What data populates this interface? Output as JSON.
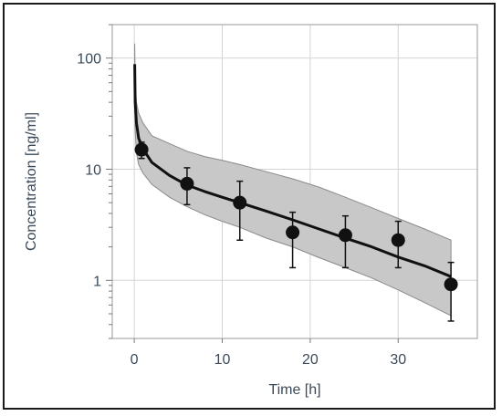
{
  "chart_data": {
    "type": "scatter",
    "xlabel": "Time [h]",
    "ylabel": "Concentration [ng/ml]",
    "xlim": [
      -2.5,
      39
    ],
    "ylim": [
      0.3,
      200
    ],
    "y_scale": "log",
    "grid": true,
    "x_ticks": [
      {
        "value": 0,
        "label": "0"
      },
      {
        "value": 10,
        "label": "10"
      },
      {
        "value": 20,
        "label": "20"
      },
      {
        "value": 30,
        "label": "30"
      }
    ],
    "y_ticks": [
      {
        "value": 1,
        "label": "1"
      },
      {
        "value": 10,
        "label": "10"
      },
      {
        "value": 100,
        "label": "100"
      }
    ],
    "series": [
      {
        "role": "observed",
        "x": [
          0.83,
          6,
          12,
          18,
          24,
          30,
          36
        ],
        "y": [
          15,
          7.4,
          5.0,
          2.7,
          2.55,
          2.3,
          0.92
        ],
        "y_err_low": [
          12.5,
          4.8,
          2.3,
          1.3,
          1.3,
          1.3,
          0.43
        ],
        "y_err_high": [
          17.5,
          10.3,
          7.8,
          4.1,
          3.8,
          3.4,
          1.45
        ]
      },
      {
        "role": "prediction-median",
        "x": [
          0.05,
          0.1,
          0.25,
          0.5,
          1,
          2,
          4,
          6,
          8,
          10,
          12,
          15,
          18,
          21,
          24,
          27,
          30,
          33,
          36
        ],
        "y": [
          88,
          40,
          26,
          19,
          15.2,
          11.5,
          8.8,
          7.2,
          6.3,
          5.6,
          5.0,
          4.2,
          3.5,
          2.9,
          2.4,
          2.0,
          1.62,
          1.35,
          1.08
        ]
      },
      {
        "role": "prediction-band",
        "x": [
          0.05,
          0.1,
          0.25,
          0.5,
          1,
          2,
          4,
          6,
          8,
          10,
          12,
          15,
          18,
          21,
          24,
          27,
          30,
          33,
          36
        ],
        "lower": [
          55,
          22,
          14,
          11,
          9.2,
          7.3,
          5.6,
          4.6,
          3.9,
          3.4,
          3.0,
          2.4,
          2.0,
          1.6,
          1.3,
          1.05,
          0.82,
          0.63,
          0.48
        ],
        "upper": [
          135,
          60,
          40,
          32,
          26,
          20,
          17,
          14.5,
          13,
          12,
          11,
          9.5,
          8.2,
          6.9,
          5.6,
          4.5,
          3.6,
          2.9,
          2.3
        ]
      }
    ],
    "colors": {
      "band_fill": "#c8c8c8",
      "band_edge": "#8a8a8a",
      "median_line": "#111111",
      "points": "#111111",
      "grid": "#d4d4d4",
      "axis_text": "#3a4a5a"
    }
  }
}
